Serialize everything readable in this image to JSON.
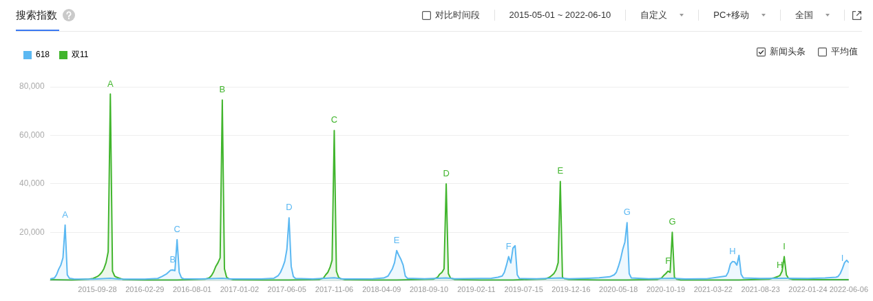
{
  "chart_data": {
    "type": "area",
    "title": "搜索指数",
    "legend": "top left",
    "grid": "y",
    "xlim": [
      "2015-04-27",
      "2022-06-06"
    ],
    "xticks": [
      "2015-09-28",
      "2016-02-29",
      "2016-08-01",
      "2017-01-02",
      "2017-06-05",
      "2017-11-06",
      "2018-04-09",
      "2018-09-10",
      "2019-02-11",
      "2019-07-15",
      "2019-12-16",
      "2020-05-18",
      "2020-10-19",
      "2021-03-22",
      "2021-08-23",
      "2022-01-24",
      "2022-06-06"
    ],
    "ylim": [
      0,
      80000
    ],
    "yticks": [
      {
        "value": 0,
        "label": null
      },
      {
        "value": 20000,
        "label": "20,000"
      },
      {
        "value": 40000,
        "label": "40,000"
      },
      {
        "value": 60000,
        "label": "60,000"
      },
      {
        "value": 80000,
        "label": "80,000"
      }
    ],
    "series": [
      {
        "name": "618",
        "color": "#5bb8f2",
        "x": [
          "2015-04-27",
          "2015-05-11",
          "2015-05-18",
          "2015-05-25",
          "2015-06-01",
          "2015-06-08",
          "2015-06-15",
          "2015-06-22",
          "2015-06-29",
          "2015-07-13",
          "2015-09-14",
          "2015-11-09",
          "2015-12-07",
          "2016-02-29",
          "2016-04-11",
          "2016-04-25",
          "2016-05-09",
          "2016-05-23",
          "2016-05-30",
          "2016-06-06",
          "2016-06-13",
          "2016-06-20",
          "2016-06-27",
          "2016-07-04",
          "2016-08-29",
          "2016-11-07",
          "2016-12-05",
          "2017-03-13",
          "2017-04-24",
          "2017-05-08",
          "2017-05-15",
          "2017-05-22",
          "2017-05-29",
          "2017-06-05",
          "2017-06-12",
          "2017-06-19",
          "2017-06-26",
          "2017-07-03",
          "2017-08-28",
          "2017-11-06",
          "2017-12-04",
          "2018-03-12",
          "2018-04-16",
          "2018-04-30",
          "2018-05-07",
          "2018-05-14",
          "2018-05-21",
          "2018-05-28",
          "2018-06-04",
          "2018-06-11",
          "2018-06-18",
          "2018-06-25",
          "2018-07-02",
          "2018-08-27",
          "2018-11-05",
          "2018-12-03",
          "2019-02-25",
          "2019-04-01",
          "2019-04-22",
          "2019-05-06",
          "2019-05-13",
          "2019-05-20",
          "2019-05-27",
          "2019-06-03",
          "2019-06-10",
          "2019-06-17",
          "2019-06-24",
          "2019-07-01",
          "2019-08-26",
          "2019-11-11",
          "2019-12-09",
          "2020-02-10",
          "2020-03-16",
          "2020-04-20",
          "2020-05-04",
          "2020-05-11",
          "2020-05-18",
          "2020-05-25",
          "2020-06-01",
          "2020-06-08",
          "2020-06-15",
          "2020-06-22",
          "2020-06-29",
          "2020-08-24",
          "2020-11-09",
          "2020-12-21",
          "2021-03-01",
          "2021-04-05",
          "2021-05-03",
          "2021-05-10",
          "2021-05-17",
          "2021-05-24",
          "2021-05-31",
          "2021-06-07",
          "2021-06-14",
          "2021-06-21",
          "2021-06-28",
          "2021-08-23",
          "2021-11-08",
          "2022-01-24",
          "2022-03-21",
          "2022-04-25",
          "2022-05-02",
          "2022-05-09",
          "2022-05-16",
          "2022-05-23",
          "2022-05-30",
          "2022-06-06"
        ],
        "values": [
          800,
          1200,
          2500,
          4800,
          6500,
          9500,
          23000,
          2500,
          1100,
          800,
          700,
          1100,
          700,
          700,
          1000,
          1800,
          2800,
          4400,
          4500,
          4200,
          17000,
          3500,
          1300,
          900,
          800,
          1100,
          800,
          800,
          1100,
          2200,
          3500,
          5500,
          8000,
          13000,
          26000,
          6000,
          1800,
          1000,
          800,
          1300,
          800,
          900,
          1200,
          2000,
          3500,
          5000,
          7500,
          12500,
          10500,
          8800,
          6500,
          2000,
          1100,
          900,
          1200,
          900,
          1000,
          1100,
          1500,
          2000,
          3500,
          6500,
          10000,
          7400,
          13500,
          14500,
          2500,
          1000,
          900,
          1200,
          900,
          1100,
          1300,
          1700,
          2500,
          3500,
          6000,
          9000,
          13000,
          16000,
          24000,
          3000,
          1200,
          900,
          1100,
          800,
          900,
          1500,
          2000,
          3600,
          7000,
          8000,
          7800,
          6500,
          10500,
          2700,
          1200,
          1000,
          1100,
          1000,
          1200,
          1500,
          1800,
          3000,
          5000,
          7500,
          8500,
          7500
        ]
      },
      {
        "name": "双11",
        "color": "#41b52d",
        "x": [
          "2015-04-27",
          "2015-07-06",
          "2015-08-31",
          "2015-09-14",
          "2015-09-28",
          "2015-10-05",
          "2015-10-12",
          "2015-10-19",
          "2015-10-26",
          "2015-11-02",
          "2015-11-09",
          "2015-11-16",
          "2015-11-23",
          "2015-11-30",
          "2015-12-07",
          "2015-12-21",
          "2016-02-29",
          "2016-06-13",
          "2016-09-12",
          "2016-09-26",
          "2016-10-03",
          "2016-10-10",
          "2016-10-17",
          "2016-10-24",
          "2016-10-31",
          "2016-11-07",
          "2016-11-14",
          "2016-11-21",
          "2016-11-28",
          "2016-12-12",
          "2017-03-27",
          "2017-06-12",
          "2017-09-18",
          "2017-10-02",
          "2017-10-09",
          "2017-10-16",
          "2017-10-23",
          "2017-10-30",
          "2017-11-06",
          "2017-11-13",
          "2017-11-20",
          "2017-11-27",
          "2017-12-11",
          "2018-03-12",
          "2018-05-28",
          "2018-09-24",
          "2018-10-08",
          "2018-10-15",
          "2018-10-22",
          "2018-10-29",
          "2018-11-05",
          "2018-11-12",
          "2018-11-19",
          "2018-12-03",
          "2019-02-25",
          "2019-06-10",
          "2019-09-23",
          "2019-10-07",
          "2019-10-14",
          "2019-10-21",
          "2019-10-28",
          "2019-11-04",
          "2019-11-11",
          "2019-11-18",
          "2019-11-25",
          "2019-12-09",
          "2020-03-16",
          "2020-06-15",
          "2020-09-21",
          "2020-10-05",
          "2020-10-12",
          "2020-10-19",
          "2020-10-26",
          "2020-11-02",
          "2020-11-09",
          "2020-11-16",
          "2020-11-23",
          "2020-12-07",
          "2021-04-05",
          "2021-06-14",
          "2021-09-20",
          "2021-10-04",
          "2021-10-18",
          "2021-10-25",
          "2021-11-01",
          "2021-11-08",
          "2021-11-15",
          "2021-11-22",
          "2021-12-06",
          "2022-03-21",
          "2022-06-06"
        ],
        "values": [
          500,
          400,
          700,
          1000,
          1800,
          2500,
          3500,
          5000,
          7500,
          12000,
          77000,
          4000,
          2000,
          1500,
          1200,
          600,
          400,
          400,
          700,
          1300,
          2200,
          3800,
          6000,
          7500,
          9500,
          74500,
          5000,
          1500,
          900,
          500,
          400,
          400,
          600,
          1200,
          2500,
          3500,
          5500,
          8500,
          62000,
          4000,
          1500,
          900,
          500,
          400,
          400,
          700,
          1500,
          2800,
          3500,
          5000,
          40000,
          3000,
          1200,
          600,
          400,
          400,
          800,
          1500,
          2200,
          3000,
          4500,
          7500,
          41000,
          1500,
          900,
          600,
          400,
          400,
          600,
          1200,
          2200,
          3000,
          4000,
          3500,
          20000,
          1500,
          700,
          400,
          400,
          400,
          700,
          1200,
          1800,
          2200,
          4000,
          10000,
          2500,
          1000,
          600,
          500,
          500
        ]
      }
    ],
    "annotations": [
      "对比时间段",
      "2015-05-01 ~ 2022-06-10",
      "自定义",
      "PC+移动",
      "全国",
      "新闻头条",
      "平均值",
      {
        "text": "A",
        "x": "2015-06-15",
        "y": 23000
      },
      {
        "text": "B",
        "x": "2016-05-30",
        "y": 4500
      },
      {
        "text": "C",
        "x": "2016-06-13",
        "y": 17000
      },
      {
        "text": "D",
        "x": "2017-06-12",
        "y": 26000
      },
      {
        "text": "E",
        "x": "2018-05-28",
        "y": 12500
      },
      {
        "text": "F",
        "x": "2019-05-27",
        "y": 10000
      },
      {
        "text": "G",
        "x": "2020-06-15",
        "y": 24000
      },
      {
        "text": "H",
        "x": "2021-05-24",
        "y": 8000
      },
      {
        "text": "I",
        "x": "2022-05-16",
        "y": 5000
      },
      {
        "text": "A",
        "x": "2015-11-09",
        "y": 77000
      },
      {
        "text": "B",
        "x": "2016-11-07",
        "y": 74500
      },
      {
        "text": "C",
        "x": "2017-11-06",
        "y": 62000
      },
      {
        "text": "D",
        "x": "2018-11-05",
        "y": 40000
      },
      {
        "text": "E",
        "x": "2019-11-11",
        "y": 41000
      },
      {
        "text": "F",
        "x": "2020-10-26",
        "y": 4000
      },
      {
        "text": "G",
        "x": "2020-11-09",
        "y": 20000
      },
      {
        "text": "H",
        "x": "2021-10-25",
        "y": 2200
      },
      {
        "text": "I",
        "x": "2021-11-08",
        "y": 10000
      }
    ]
  }
}
